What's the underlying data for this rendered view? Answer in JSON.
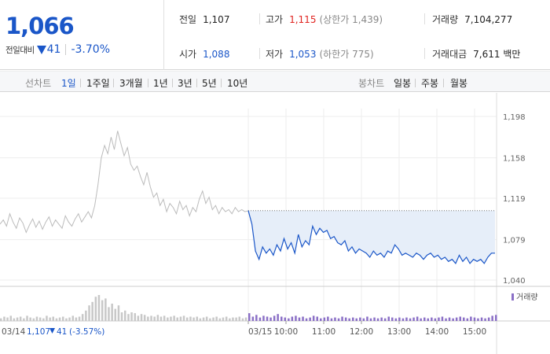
{
  "header": {
    "current_price": "1,066",
    "change_label": "전일대비",
    "change_value": "41",
    "change_pct": "-3.70%",
    "info": {
      "prev_close": {
        "label": "전일",
        "value": "1,107"
      },
      "high": {
        "label": "고가",
        "value": "1,115",
        "note": "(상한가 1,439)"
      },
      "volume": {
        "label": "거래량",
        "value": "7,104,277"
      },
      "open": {
        "label": "시가",
        "value": "1,088"
      },
      "low": {
        "label": "저가",
        "value": "1,053",
        "note": "(하한가 775)"
      },
      "trade_value": {
        "label": "거래대금",
        "value": "7,611 백만"
      }
    }
  },
  "toolbar": {
    "line_chart_label": "선차트",
    "periods": [
      "1일",
      "1주일",
      "3개월",
      "1년",
      "3년",
      "5년",
      "10년"
    ],
    "active_period": "1일",
    "candle_chart_label": "봉차트",
    "candle_periods": [
      "일봉",
      "주봉",
      "월봉"
    ]
  },
  "chart_data": {
    "type": "line",
    "y_ticks": [
      "1,198",
      "1,158",
      "1,119",
      "1,079",
      "1,040"
    ],
    "ylim": [
      1040,
      1198
    ],
    "reference_price": 1107,
    "x_ticks": [
      "03/15",
      "10:00",
      "11:00",
      "12:00",
      "13:00",
      "14:00",
      "15:00"
    ],
    "volume_legend": "거래량",
    "prev_day_summary": {
      "date": "03/14",
      "close": "1,107",
      "change": "41",
      "change_pct": "(-3.57%)"
    },
    "prev_day_series": [
      1094,
      1098,
      1092,
      1104,
      1096,
      1090,
      1100,
      1095,
      1086,
      1093,
      1099,
      1091,
      1097,
      1089,
      1096,
      1101,
      1092,
      1098,
      1094,
      1090,
      1102,
      1096,
      1092,
      1099,
      1104,
      1096,
      1101,
      1106,
      1100,
      1112,
      1132,
      1158,
      1170,
      1162,
      1178,
      1166,
      1184,
      1172,
      1160,
      1168,
      1152,
      1146,
      1150,
      1140,
      1132,
      1144,
      1130,
      1120,
      1124,
      1112,
      1118,
      1106,
      1114,
      1110,
      1104,
      1116,
      1108,
      1112,
      1102,
      1110,
      1106,
      1118,
      1126,
      1114,
      1120,
      1108,
      1112,
      1104,
      1110,
      1106,
      1108,
      1104,
      1110,
      1106,
      1108,
      1106,
      1107
    ],
    "today_series": [
      1107,
      1094,
      1068,
      1060,
      1072,
      1066,
      1070,
      1064,
      1074,
      1068,
      1080,
      1070,
      1076,
      1066,
      1084,
      1072,
      1078,
      1074,
      1092,
      1084,
      1090,
      1086,
      1088,
      1080,
      1082,
      1076,
      1074,
      1078,
      1068,
      1072,
      1066,
      1070,
      1068,
      1066,
      1062,
      1068,
      1064,
      1066,
      1062,
      1068,
      1066,
      1074,
      1070,
      1064,
      1066,
      1064,
      1062,
      1066,
      1064,
      1060,
      1064,
      1066,
      1062,
      1064,
      1060,
      1062,
      1058,
      1060,
      1056,
      1064,
      1058,
      1062,
      1056,
      1060,
      1058,
      1060,
      1056,
      1062,
      1066,
      1066
    ],
    "today_volume": [
      9,
      5,
      7,
      4,
      6,
      5,
      4,
      6,
      8,
      5,
      4,
      3,
      5,
      6,
      4,
      5,
      3,
      4,
      6,
      5,
      3,
      4,
      5,
      3,
      4,
      3,
      5,
      4,
      3,
      4,
      3,
      4,
      3,
      5,
      3,
      4,
      3,
      4,
      3,
      5,
      4,
      3,
      4,
      3,
      4,
      3,
      4,
      5,
      3,
      4,
      3,
      4,
      3,
      4,
      5,
      3,
      4,
      3,
      4,
      5,
      4,
      3,
      5,
      4,
      3,
      4,
      3,
      4,
      6,
      7
    ],
    "prev_volume": [
      3,
      5,
      4,
      6,
      3,
      4,
      5,
      3,
      6,
      4,
      3,
      5,
      4,
      3,
      6,
      4,
      5,
      3,
      4,
      5,
      3,
      4,
      6,
      4,
      5,
      8,
      12,
      18,
      22,
      28,
      30,
      24,
      26,
      16,
      20,
      14,
      18,
      10,
      12,
      8,
      10,
      9,
      6,
      8,
      7,
      5,
      6,
      5,
      7,
      5,
      6,
      4,
      5,
      6,
      4,
      5,
      6,
      4,
      5,
      4,
      5,
      3,
      4,
      5,
      3,
      4,
      5,
      3,
      4,
      5,
      3,
      4,
      4,
      5,
      3,
      4,
      5
    ]
  }
}
